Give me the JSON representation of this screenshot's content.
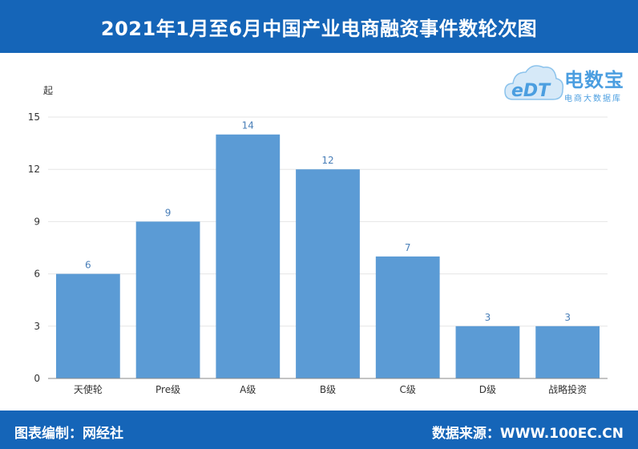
{
  "header": {
    "title": "2021年1月至6月中国产业电商融资事件数轮次图"
  },
  "footer": {
    "editor": "图表编制：网经社",
    "source": "数据来源：WWW.100EC.CN"
  },
  "logo": {
    "mark": "eDT",
    "brand": "电数宝",
    "subtitle": "电商大数据库",
    "icon": "cloud-logo-icon"
  },
  "colors": {
    "bar": "#5b9bd5",
    "header": "#1565b8",
    "label": "#4a7fb8"
  },
  "chart_data": {
    "type": "bar",
    "title": "2021年1月至6月中国产业电商融资事件数轮次图",
    "ylabel": "起",
    "xlabel": "",
    "categories": [
      "天使轮",
      "Pre级",
      "A级",
      "B级",
      "C级",
      "D级",
      "战略投资"
    ],
    "values": [
      6,
      9,
      14,
      12,
      7,
      3,
      3
    ],
    "ylim": [
      0,
      15
    ],
    "yticks": [
      0,
      3,
      6,
      9,
      12,
      15
    ],
    "grid": true,
    "legend": "none"
  }
}
